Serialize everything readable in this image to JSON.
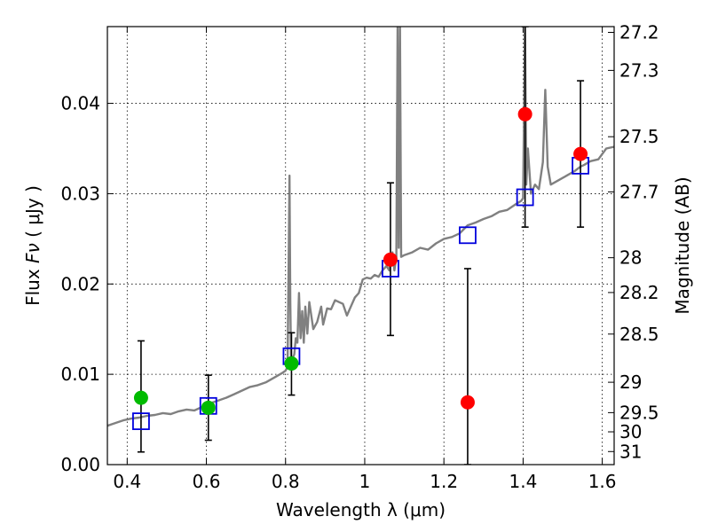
{
  "chart_data": {
    "type": "scatter",
    "xlabel": "Wavelength  λ (μm)",
    "ylabel_prefix": "Flux  ",
    "ylabel_symbol": "Fν",
    "ylabel_unit": "  ( μJy )",
    "ylabel_right": "Magnitude (AB)",
    "xlim": [
      0.35,
      1.63
    ],
    "ylim": [
      0.0,
      0.0485
    ],
    "grid": true,
    "x_ticks": [
      {
        "value": 0.4,
        "label": "0.4"
      },
      {
        "value": 0.6,
        "label": "0.6"
      },
      {
        "value": 0.8,
        "label": "0.8"
      },
      {
        "value": 1.0,
        "label": "1"
      },
      {
        "value": 1.2,
        "label": "1.2"
      },
      {
        "value": 1.4,
        "label": "1.4"
      },
      {
        "value": 1.6,
        "label": "1.6"
      }
    ],
    "y_ticks": [
      {
        "value": 0.0,
        "label": "0.00"
      },
      {
        "value": 0.01,
        "label": "0.01"
      },
      {
        "value": 0.02,
        "label": "0.02"
      },
      {
        "value": 0.03,
        "label": "0.03"
      },
      {
        "value": 0.04,
        "label": "0.04"
      }
    ],
    "right_ticks": [
      {
        "value": 27.2,
        "label": "27.2"
      },
      {
        "value": 27.3,
        "label": "27.3"
      },
      {
        "value": 27.5,
        "label": "27.5"
      },
      {
        "value": 27.7,
        "label": "27.7"
      },
      {
        "value": 28.0,
        "label": "28"
      },
      {
        "value": 28.2,
        "label": "28.2"
      },
      {
        "value": 28.5,
        "label": "28.5"
      },
      {
        "value": 29.0,
        "label": "29"
      },
      {
        "value": 29.5,
        "label": "29.5"
      },
      {
        "value": 30.0,
        "label": "30"
      },
      {
        "value": 31.0,
        "label": "31"
      }
    ],
    "model_spectrum": {
      "color": "#808080",
      "points": [
        [
          0.35,
          0.0043
        ],
        [
          0.37,
          0.0046
        ],
        [
          0.39,
          0.0049
        ],
        [
          0.41,
          0.0051
        ],
        [
          0.43,
          0.0052
        ],
        [
          0.45,
          0.0054
        ],
        [
          0.47,
          0.0055
        ],
        [
          0.49,
          0.0057
        ],
        [
          0.51,
          0.0056
        ],
        [
          0.53,
          0.0059
        ],
        [
          0.55,
          0.0061
        ],
        [
          0.57,
          0.006
        ],
        [
          0.59,
          0.0064
        ],
        [
          0.61,
          0.0068
        ],
        [
          0.63,
          0.0071
        ],
        [
          0.65,
          0.0074
        ],
        [
          0.67,
          0.0078
        ],
        [
          0.69,
          0.0082
        ],
        [
          0.71,
          0.0086
        ],
        [
          0.73,
          0.0088
        ],
        [
          0.75,
          0.0091
        ],
        [
          0.77,
          0.0096
        ],
        [
          0.79,
          0.0101
        ],
        [
          0.8,
          0.0104
        ],
        [
          0.805,
          0.0108
        ],
        [
          0.808,
          0.023
        ],
        [
          0.81,
          0.032
        ],
        [
          0.812,
          0.018
        ],
        [
          0.814,
          0.0114
        ],
        [
          0.818,
          0.0118
        ],
        [
          0.822,
          0.0122
        ],
        [
          0.826,
          0.014
        ],
        [
          0.83,
          0.0135
        ],
        [
          0.834,
          0.019
        ],
        [
          0.838,
          0.014
        ],
        [
          0.842,
          0.017
        ],
        [
          0.846,
          0.0135
        ],
        [
          0.85,
          0.0175
        ],
        [
          0.855,
          0.0145
        ],
        [
          0.86,
          0.018
        ],
        [
          0.87,
          0.015
        ],
        [
          0.88,
          0.0158
        ],
        [
          0.89,
          0.0175
        ],
        [
          0.895,
          0.0155
        ],
        [
          0.905,
          0.0173
        ],
        [
          0.915,
          0.0172
        ],
        [
          0.925,
          0.0182
        ],
        [
          0.935,
          0.018
        ],
        [
          0.945,
          0.0178
        ],
        [
          0.955,
          0.0165
        ],
        [
          0.965,
          0.0175
        ],
        [
          0.975,
          0.0185
        ],
        [
          0.985,
          0.019
        ],
        [
          0.995,
          0.0205
        ],
        [
          1.005,
          0.0207
        ],
        [
          1.015,
          0.0206
        ],
        [
          1.025,
          0.021
        ],
        [
          1.035,
          0.0208
        ],
        [
          1.045,
          0.0215
        ],
        [
          1.055,
          0.022
        ],
        [
          1.062,
          0.0215
        ],
        [
          1.066,
          0.0225
        ],
        [
          1.07,
          0.0235
        ],
        [
          1.075,
          0.0215
        ],
        [
          1.08,
          0.023
        ],
        [
          1.083,
          0.0485
        ],
        [
          1.086,
          0.024
        ],
        [
          1.089,
          0.0485
        ],
        [
          1.092,
          0.023
        ],
        [
          1.1,
          0.0232
        ],
        [
          1.12,
          0.0235
        ],
        [
          1.14,
          0.024
        ],
        [
          1.16,
          0.0238
        ],
        [
          1.18,
          0.0245
        ],
        [
          1.2,
          0.025
        ],
        [
          1.22,
          0.0252
        ],
        [
          1.24,
          0.0256
        ],
        [
          1.26,
          0.0265
        ],
        [
          1.28,
          0.0268
        ],
        [
          1.3,
          0.0272
        ],
        [
          1.32,
          0.0275
        ],
        [
          1.34,
          0.028
        ],
        [
          1.36,
          0.0282
        ],
        [
          1.38,
          0.0288
        ],
        [
          1.395,
          0.0292
        ],
        [
          1.4,
          0.0295
        ],
        [
          1.405,
          0.0485
        ],
        [
          1.408,
          0.031
        ],
        [
          1.412,
          0.035
        ],
        [
          1.42,
          0.03
        ],
        [
          1.43,
          0.031
        ],
        [
          1.44,
          0.0305
        ],
        [
          1.45,
          0.0335
        ],
        [
          1.456,
          0.0415
        ],
        [
          1.462,
          0.033
        ],
        [
          1.47,
          0.031
        ],
        [
          1.49,
          0.0315
        ],
        [
          1.51,
          0.032
        ],
        [
          1.53,
          0.0325
        ],
        [
          1.545,
          0.033
        ],
        [
          1.555,
          0.0332
        ],
        [
          1.57,
          0.0336
        ],
        [
          1.59,
          0.0338
        ],
        [
          1.61,
          0.035
        ],
        [
          1.63,
          0.0352
        ]
      ]
    },
    "observed_optical": {
      "color": "#00bb00",
      "points": [
        {
          "x": 0.435,
          "y": 0.0074,
          "err_low": 0.0014,
          "err_high": 0.0137
        },
        {
          "x": 0.605,
          "y": 0.0063,
          "err_low": 0.0027,
          "err_high": 0.0099
        },
        {
          "x": 0.815,
          "y": 0.0112,
          "err_low": 0.0077,
          "err_high": 0.0146
        }
      ]
    },
    "observed_nir": {
      "color": "#ff0000",
      "points": [
        {
          "x": 1.065,
          "y": 0.0227,
          "err_low": 0.0143,
          "err_high": 0.0312
        },
        {
          "x": 1.26,
          "y": 0.0069,
          "err_low": 0.0,
          "err_high": 0.0217
        },
        {
          "x": 1.405,
          "y": 0.0388,
          "err_low": 0.0263,
          "err_high": 0.0485
        },
        {
          "x": 1.545,
          "y": 0.0344,
          "err_low": 0.0263,
          "err_high": 0.0425
        }
      ]
    },
    "model_bandpass": {
      "color": "#0000dd",
      "points": [
        {
          "x": 0.435,
          "y": 0.0048
        },
        {
          "x": 0.605,
          "y": 0.0065
        },
        {
          "x": 0.815,
          "y": 0.012
        },
        {
          "x": 1.065,
          "y": 0.0217
        },
        {
          "x": 1.26,
          "y": 0.0254
        },
        {
          "x": 1.405,
          "y": 0.0296
        },
        {
          "x": 1.545,
          "y": 0.0331
        }
      ]
    }
  }
}
